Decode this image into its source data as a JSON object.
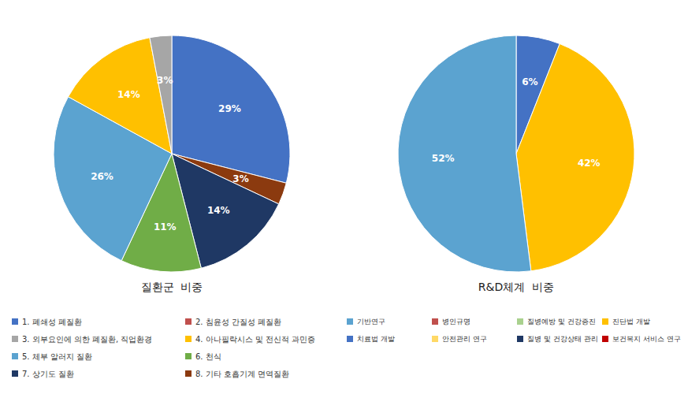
{
  "chart_data": [
    {
      "type": "pie",
      "title": "질환군  비중",
      "values": [
        29,
        3,
        14,
        11,
        26,
        14,
        3
      ],
      "value_labels": [
        "29%",
        "3%",
        "14%",
        "11%",
        "26%",
        "14%",
        "3%"
      ],
      "colors": [
        "#4472C4",
        "#8B3A0F",
        "#1F3864",
        "#70AD47",
        "#5BA3D0",
        "#FFC000",
        "#A6A6A6"
      ],
      "data_labels": true,
      "legend_entries": [
        {
          "name": "1. 폐쇄성 폐질환",
          "color": "#4472C4"
        },
        {
          "name": "2. 침윤성 간질성 폐질환",
          "color": "#C0504D"
        },
        {
          "name": "3. 외부요인에 의한 폐질환, 직업환경",
          "color": "#A6A6A6"
        },
        {
          "name": "4. 아나필락시스 및 전신적 과민증",
          "color": "#FFC000"
        },
        {
          "name": "5. 체부 알러지 질환",
          "color": "#5BA3D0"
        },
        {
          "name": "6. 천식",
          "color": "#70AD47"
        },
        {
          "name": "7. 상기도 질환",
          "color": "#1F3864"
        },
        {
          "name": "8. 기타 호흡기계 면역질환",
          "color": "#8B3A0F"
        }
      ]
    },
    {
      "type": "pie",
      "title": "R&D체계  비중",
      "values": [
        6,
        42,
        52
      ],
      "value_labels": [
        "6%",
        "42%",
        "52%"
      ],
      "colors": [
        "#4472C4",
        "#FFC000",
        "#5BA3D0"
      ],
      "data_labels": true,
      "legend_entries": [
        {
          "name": "기반연구",
          "color": "#5BA3D0"
        },
        {
          "name": "병인규명",
          "color": "#C0504D"
        },
        {
          "name": "질병예방 및 건강증진",
          "color": "#A9D18E"
        },
        {
          "name": "진단법 개발",
          "color": "#FFC000"
        },
        {
          "name": "치료법 개발",
          "color": "#4472C4"
        },
        {
          "name": "안전관리 연구",
          "color": "#FFD966"
        },
        {
          "name": "질병 및 건강상태 관리",
          "color": "#1F3864"
        },
        {
          "name": "보건복지 서비스 연구",
          "color": "#C00000"
        }
      ]
    }
  ]
}
